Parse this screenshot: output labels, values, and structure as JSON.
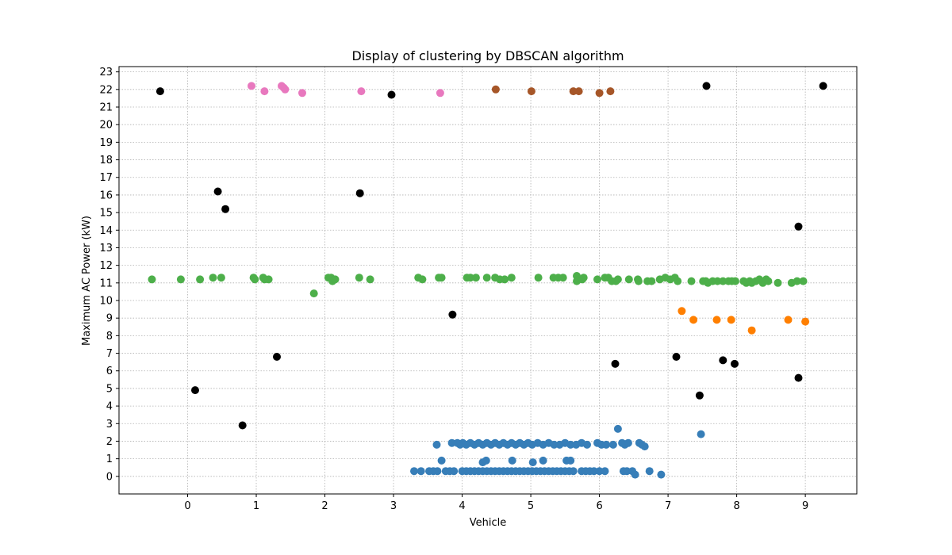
{
  "chart_data": {
    "type": "scatter",
    "title": "Display of clustering by DBSCAN algorithm",
    "xlabel": "Vehicle",
    "ylabel": "Maximum AC Power (kW)",
    "xlim": [
      -1.0,
      9.75
    ],
    "ylim": [
      -1.0,
      23.3
    ],
    "grid": true,
    "x_ticks": [
      "0",
      "1",
      "2",
      "3",
      "4",
      "5",
      "6",
      "7",
      "8",
      "9"
    ],
    "y_ticks": [
      "0",
      "1",
      "2",
      "3",
      "4",
      "5",
      "6",
      "7",
      "8",
      "9",
      "10",
      "11",
      "12",
      "13",
      "14",
      "15",
      "16",
      "17",
      "18",
      "19",
      "20",
      "21",
      "22",
      "23"
    ],
    "series": [
      {
        "color": "#000000",
        "points": [
          [
            -0.4,
            21.9
          ],
          [
            2.97,
            21.7
          ],
          [
            7.56,
            22.2
          ],
          [
            9.26,
            22.2
          ],
          [
            0.44,
            16.2
          ],
          [
            0.55,
            15.2
          ],
          [
            2.51,
            16.1
          ],
          [
            8.9,
            14.2
          ],
          [
            3.86,
            9.2
          ],
          [
            1.3,
            6.8
          ],
          [
            6.23,
            6.4
          ],
          [
            7.12,
            6.8
          ],
          [
            7.8,
            6.6
          ],
          [
            7.97,
            6.4
          ],
          [
            0.11,
            4.9
          ],
          [
            7.46,
            4.6
          ],
          [
            8.9,
            5.6
          ],
          [
            0.8,
            2.9
          ]
        ]
      },
      {
        "color": "#e878be",
        "points": [
          [
            0.93,
            22.2
          ],
          [
            1.12,
            21.9
          ],
          [
            1.37,
            22.2
          ],
          [
            1.4,
            22.1
          ],
          [
            1.42,
            22.0
          ],
          [
            1.67,
            21.8
          ],
          [
            2.53,
            21.9
          ],
          [
            3.68,
            21.8
          ]
        ]
      },
      {
        "color": "#a65628",
        "points": [
          [
            4.49,
            22.0
          ],
          [
            5.01,
            21.9
          ],
          [
            5.62,
            21.9
          ],
          [
            5.7,
            21.9
          ],
          [
            6.0,
            21.8
          ],
          [
            6.16,
            21.9
          ]
        ]
      },
      {
        "color": "#4daf4a",
        "points": [
          [
            -0.52,
            11.2
          ],
          [
            -0.1,
            11.2
          ],
          [
            0.18,
            11.2
          ],
          [
            0.37,
            11.3
          ],
          [
            0.49,
            11.3
          ],
          [
            0.96,
            11.3
          ],
          [
            0.98,
            11.2
          ],
          [
            1.1,
            11.3
          ],
          [
            1.12,
            11.2
          ],
          [
            1.18,
            11.2
          ],
          [
            1.84,
            10.4
          ],
          [
            2.05,
            11.3
          ],
          [
            2.09,
            11.3
          ],
          [
            2.11,
            11.1
          ],
          [
            2.15,
            11.2
          ],
          [
            2.5,
            11.3
          ],
          [
            2.66,
            11.2
          ],
          [
            3.36,
            11.3
          ],
          [
            3.42,
            11.2
          ],
          [
            3.66,
            11.3
          ],
          [
            3.7,
            11.3
          ],
          [
            4.07,
            11.3
          ],
          [
            4.12,
            11.3
          ],
          [
            4.2,
            11.3
          ],
          [
            4.36,
            11.3
          ],
          [
            4.48,
            11.3
          ],
          [
            4.55,
            11.2
          ],
          [
            4.62,
            11.2
          ],
          [
            4.72,
            11.3
          ],
          [
            5.11,
            11.3
          ],
          [
            5.33,
            11.3
          ],
          [
            5.4,
            11.3
          ],
          [
            5.47,
            11.3
          ],
          [
            5.67,
            11.4
          ],
          [
            5.67,
            11.1
          ],
          [
            5.75,
            11.2
          ],
          [
            5.77,
            11.3
          ],
          [
            5.97,
            11.2
          ],
          [
            6.08,
            11.3
          ],
          [
            6.13,
            11.3
          ],
          [
            6.18,
            11.1
          ],
          [
            6.24,
            11.1
          ],
          [
            6.27,
            11.2
          ],
          [
            6.43,
            11.2
          ],
          [
            6.56,
            11.2
          ],
          [
            6.57,
            11.1
          ],
          [
            6.7,
            11.1
          ],
          [
            6.76,
            11.1
          ],
          [
            6.88,
            11.2
          ],
          [
            6.96,
            11.3
          ],
          [
            7.03,
            11.2
          ],
          [
            7.1,
            11.3
          ],
          [
            7.14,
            11.1
          ],
          [
            7.34,
            11.1
          ],
          [
            7.51,
            11.1
          ],
          [
            7.55,
            11.1
          ],
          [
            7.58,
            11.0
          ],
          [
            7.65,
            11.1
          ],
          [
            7.72,
            11.1
          ],
          [
            7.8,
            11.1
          ],
          [
            7.88,
            11.1
          ],
          [
            7.93,
            11.1
          ],
          [
            7.98,
            11.1
          ],
          [
            8.1,
            11.1
          ],
          [
            8.14,
            11.0
          ],
          [
            8.19,
            11.1
          ],
          [
            8.22,
            11.0
          ],
          [
            8.28,
            11.1
          ],
          [
            8.33,
            11.2
          ],
          [
            8.38,
            11.0
          ],
          [
            8.43,
            11.2
          ],
          [
            8.46,
            11.1
          ],
          [
            8.6,
            11.0
          ],
          [
            8.8,
            11.0
          ],
          [
            8.88,
            11.1
          ],
          [
            8.97,
            11.1
          ]
        ]
      },
      {
        "color": "#ff7f00",
        "points": [
          [
            7.2,
            9.4
          ],
          [
            7.37,
            8.9
          ],
          [
            7.71,
            8.9
          ],
          [
            7.92,
            8.9
          ],
          [
            8.22,
            8.3
          ],
          [
            8.75,
            8.9
          ],
          [
            9.0,
            8.8
          ]
        ]
      },
      {
        "color": "#377eb8",
        "points": [
          [
            7.48,
            2.4
          ],
          [
            6.27,
            2.7
          ],
          [
            3.63,
            1.8
          ],
          [
            3.85,
            1.9
          ],
          [
            3.93,
            1.9
          ],
          [
            3.97,
            1.8
          ],
          [
            4.01,
            1.9
          ],
          [
            4.06,
            1.8
          ],
          [
            4.12,
            1.9
          ],
          [
            4.18,
            1.8
          ],
          [
            4.24,
            1.9
          ],
          [
            4.3,
            1.8
          ],
          [
            4.36,
            1.9
          ],
          [
            4.42,
            1.8
          ],
          [
            4.48,
            1.9
          ],
          [
            4.54,
            1.8
          ],
          [
            4.6,
            1.9
          ],
          [
            4.66,
            1.8
          ],
          [
            4.72,
            1.9
          ],
          [
            4.78,
            1.8
          ],
          [
            4.84,
            1.9
          ],
          [
            4.9,
            1.8
          ],
          [
            4.96,
            1.9
          ],
          [
            5.02,
            1.8
          ],
          [
            5.1,
            1.9
          ],
          [
            5.18,
            1.8
          ],
          [
            5.26,
            1.9
          ],
          [
            5.34,
            1.8
          ],
          [
            5.42,
            1.8
          ],
          [
            5.5,
            1.9
          ],
          [
            5.58,
            1.8
          ],
          [
            5.66,
            1.8
          ],
          [
            5.74,
            1.9
          ],
          [
            5.82,
            1.8
          ],
          [
            5.97,
            1.9
          ],
          [
            6.03,
            1.8
          ],
          [
            6.1,
            1.8
          ],
          [
            6.2,
            1.8
          ],
          [
            6.33,
            1.9
          ],
          [
            6.37,
            1.8
          ],
          [
            6.42,
            1.9
          ],
          [
            6.58,
            1.9
          ],
          [
            6.62,
            1.8
          ],
          [
            6.66,
            1.7
          ],
          [
            3.7,
            0.9
          ],
          [
            4.3,
            0.8
          ],
          [
            4.35,
            0.9
          ],
          [
            4.73,
            0.9
          ],
          [
            5.03,
            0.8
          ],
          [
            5.18,
            0.9
          ],
          [
            5.52,
            0.9
          ],
          [
            5.58,
            0.9
          ],
          [
            3.3,
            0.3
          ],
          [
            3.4,
            0.3
          ],
          [
            3.52,
            0.3
          ],
          [
            3.58,
            0.3
          ],
          [
            3.64,
            0.3
          ],
          [
            3.76,
            0.3
          ],
          [
            3.82,
            0.3
          ],
          [
            3.88,
            0.3
          ],
          [
            4.0,
            0.3
          ],
          [
            4.06,
            0.3
          ],
          [
            4.12,
            0.3
          ],
          [
            4.18,
            0.3
          ],
          [
            4.24,
            0.3
          ],
          [
            4.3,
            0.3
          ],
          [
            4.36,
            0.3
          ],
          [
            4.42,
            0.3
          ],
          [
            4.48,
            0.3
          ],
          [
            4.54,
            0.3
          ],
          [
            4.6,
            0.3
          ],
          [
            4.66,
            0.3
          ],
          [
            4.72,
            0.3
          ],
          [
            4.78,
            0.3
          ],
          [
            4.84,
            0.3
          ],
          [
            4.9,
            0.3
          ],
          [
            4.96,
            0.3
          ],
          [
            5.02,
            0.3
          ],
          [
            5.08,
            0.3
          ],
          [
            5.14,
            0.3
          ],
          [
            5.2,
            0.3
          ],
          [
            5.26,
            0.3
          ],
          [
            5.32,
            0.3
          ],
          [
            5.38,
            0.3
          ],
          [
            5.44,
            0.3
          ],
          [
            5.5,
            0.3
          ],
          [
            5.56,
            0.3
          ],
          [
            5.62,
            0.3
          ],
          [
            5.74,
            0.3
          ],
          [
            5.8,
            0.3
          ],
          [
            5.86,
            0.3
          ],
          [
            5.92,
            0.3
          ],
          [
            6.0,
            0.3
          ],
          [
            6.08,
            0.3
          ],
          [
            6.35,
            0.3
          ],
          [
            6.4,
            0.3
          ],
          [
            6.48,
            0.3
          ],
          [
            6.73,
            0.3
          ],
          [
            6.52,
            0.1
          ],
          [
            6.9,
            0.1
          ]
        ]
      }
    ]
  }
}
